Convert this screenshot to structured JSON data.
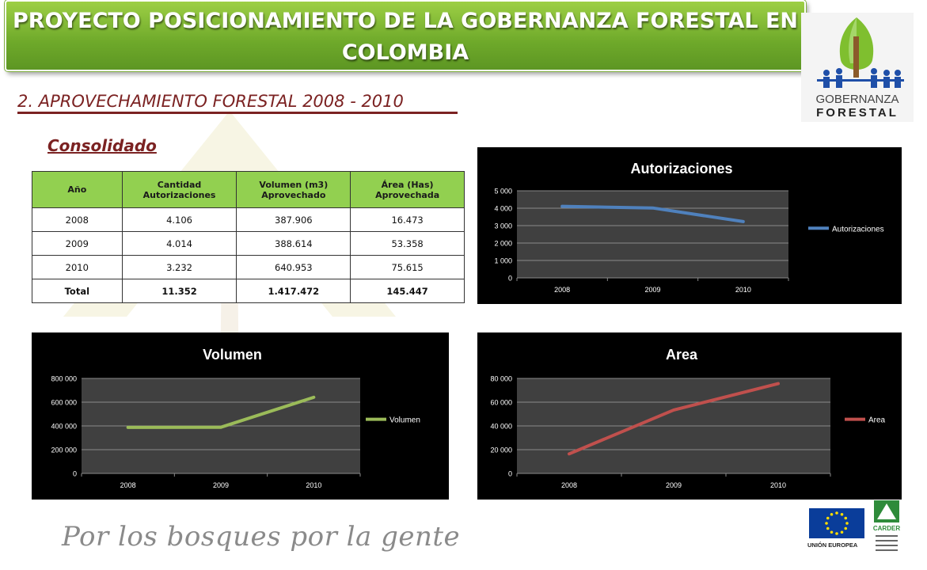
{
  "header": {
    "title_line1": "PROYECTO POSICIONAMIENTO DE LA GOBERNANZA FORESTAL EN",
    "title_line2": "COLOMBIA"
  },
  "section": {
    "title": "2. APROVECHAMIENTO FORESTAL 2008 - 2010",
    "subtitle": "Consolidado"
  },
  "table": {
    "headers": [
      "Año",
      "Cantidad Autorizaciones",
      "Volumen (m3) Aprovechado",
      "Área  (Has) Aprovechada"
    ],
    "rows": [
      [
        "2008",
        "4.106",
        "387.906",
        "16.473"
      ],
      [
        "2009",
        "4.014",
        "388.614",
        "53.358"
      ],
      [
        "2010",
        "3.232",
        "640.953",
        "75.615"
      ]
    ],
    "total": [
      "Total",
      "11.352",
      "1.417.472",
      "145.447"
    ]
  },
  "logo": {
    "line1": "GOBERNANZA",
    "line2": "FORESTAL"
  },
  "footer": {
    "slogan": "Por los bosques por la gente",
    "eu_label": "UNIÓN EUROPEA",
    "carder_label": "CARDER"
  },
  "chart_data": [
    {
      "type": "line",
      "title": "Autorizaciones",
      "categories": [
        "2008",
        "2009",
        "2010"
      ],
      "series": [
        {
          "name": "Autorizaciones",
          "values": [
            4106,
            4014,
            3232
          ],
          "color": "#4f81bd"
        }
      ],
      "ylim": [
        0,
        5000
      ],
      "yticks": [
        "0",
        "1 000",
        "2 000",
        "3 000",
        "4 000",
        "5 000"
      ],
      "legend": "right"
    },
    {
      "type": "line",
      "title": "Volumen",
      "categories": [
        "2008",
        "2009",
        "2010"
      ],
      "series": [
        {
          "name": "Volumen",
          "values": [
            387906,
            388614,
            640953
          ],
          "color": "#9bbb59"
        }
      ],
      "ylim": [
        0,
        800000
      ],
      "yticks": [
        "0",
        "200 000",
        "400 000",
        "600 000",
        "800 000"
      ],
      "legend": "right"
    },
    {
      "type": "line",
      "title": "Area",
      "categories": [
        "2008",
        "2009",
        "2010"
      ],
      "series": [
        {
          "name": "Area",
          "values": [
            16473,
            53358,
            75615
          ],
          "color": "#c0504d"
        }
      ],
      "ylim": [
        0,
        80000
      ],
      "yticks": [
        "0",
        "20 000",
        "40 000",
        "60 000",
        "80 000"
      ],
      "legend": "right"
    }
  ]
}
